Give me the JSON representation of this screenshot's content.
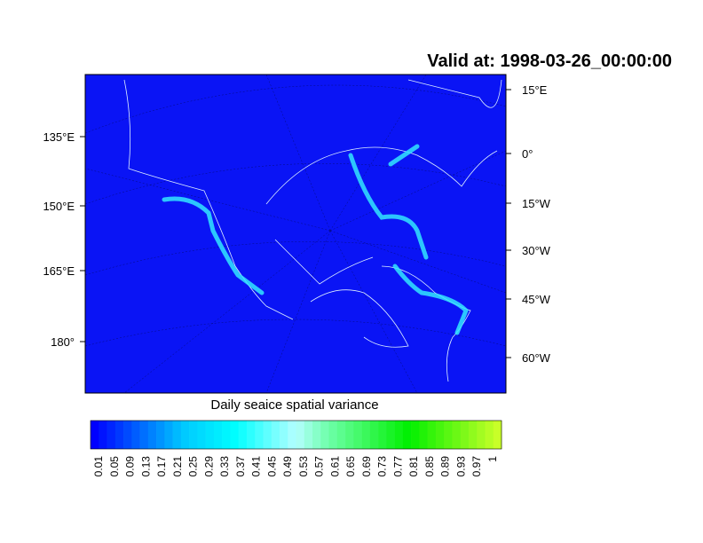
{
  "title": "Valid at: 1998-03-26_00:00:00",
  "left_labels": [
    "135°E",
    "150°E",
    "165°E",
    "180°"
  ],
  "right_labels": [
    "15°E",
    "0°",
    "15°W",
    "30°W",
    "45°W",
    "60°W"
  ],
  "colorbar": {
    "title": "Daily seaice spatial variance",
    "labels": [
      0.01,
      0.05,
      0.09,
      0.13,
      0.17,
      0.21,
      0.25,
      0.29,
      0.33,
      0.37,
      0.41,
      0.45,
      0.49,
      0.53,
      0.57,
      0.61,
      0.65,
      0.69,
      0.73,
      0.77,
      0.81,
      0.85,
      0.89,
      0.93,
      0.97,
      1
    ]
  }
}
